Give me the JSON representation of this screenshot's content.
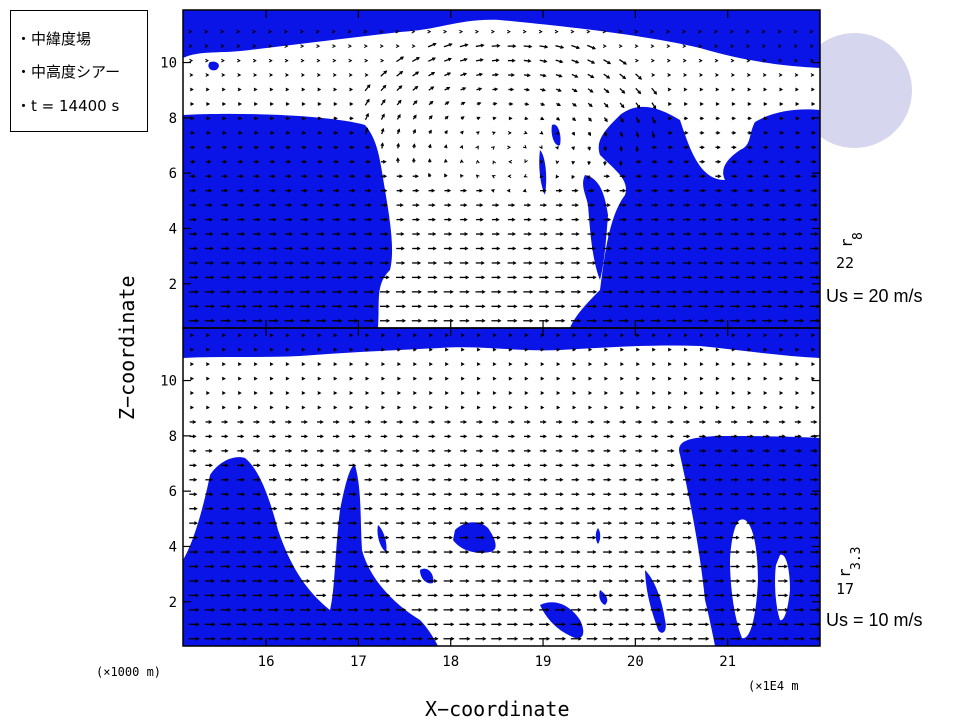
{
  "legend": {
    "line1": "・中緯度場",
    "line2": "・中高度シアー",
    "line3": "・t = 14400 s"
  },
  "panel_labels": {
    "top_shear": "Us = 20 m/s",
    "bottom_shear": "Us = 10 m/s",
    "top_var_main": "r",
    "top_var_sub": "8",
    "top_var_num": "22",
    "bottom_var_main": "r",
    "bottom_var_sub": "3.3",
    "bottom_var_num": "17"
  },
  "colors": {
    "fill": "#0a14e6",
    "arrow": "#000000",
    "circle": "#d6d6ee"
  },
  "chart_data": {
    "type": "vector-field with filled contours",
    "xlabel": "X−coordinate",
    "ylabel": "Z−coordinate",
    "x_unit_note": "(×1000 m)",
    "x_unit_note_right": "(×1E4 m",
    "xlim": [
      15.1,
      22.0
    ],
    "ylim": [
      0.4,
      11.9
    ],
    "x_ticks": [
      "16",
      "17",
      "18",
      "19",
      "20",
      "21"
    ],
    "y_ticks_top": [
      "2",
      "4",
      "6",
      "8",
      "10"
    ],
    "y_ticks_bottom": [
      "2",
      "4",
      "6",
      "8",
      "10"
    ],
    "panels": [
      {
        "name": "top",
        "label": "Us = 20 m/s"
      },
      {
        "name": "bottom",
        "label": "Us = 10 m/s"
      }
    ]
  }
}
